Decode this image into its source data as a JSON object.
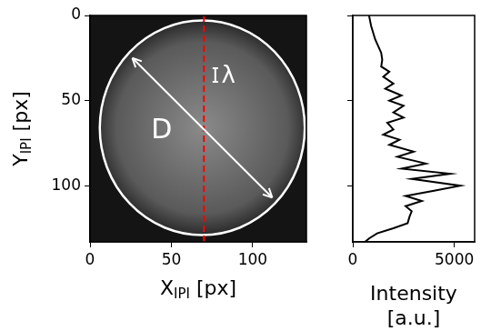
{
  "chart_data": [
    {
      "type": "image",
      "xlabel": [
        "X",
        "IPI",
        " [px]"
      ],
      "ylabel": [
        "Y",
        "IPI",
        " [px]"
      ],
      "xlim": [
        0,
        133
      ],
      "ylim": [
        133,
        0
      ],
      "xticks": [
        0,
        50,
        100
      ],
      "yticks": [
        0,
        50,
        100
      ],
      "annotations": [
        {
          "type": "circle",
          "center": [
            69,
            66
          ],
          "radius": 63,
          "color": "#ffffff"
        },
        {
          "type": "vline",
          "x": 70,
          "color": "#ff0000",
          "line_style": "dashed"
        },
        {
          "type": "arrow",
          "text": "D",
          "from": [
            26,
            25
          ],
          "to": [
            112,
            107
          ],
          "text_at": [
            44,
            68
          ],
          "color": "#ffffff"
        },
        {
          "type": "scalebar",
          "text": "λ",
          "x": 77,
          "y": [
            31,
            39
          ],
          "text_at": [
            85,
            36
          ],
          "color": "#ffffff"
        }
      ]
    },
    {
      "type": "line",
      "xlabel": [
        "Intensity",
        "[a.u.]"
      ],
      "xlim": [
        0,
        6000
      ],
      "ylim": [
        133,
        0
      ],
      "xticks": [
        0,
        5000
      ],
      "yticks": [
        0,
        50,
        100
      ],
      "tick_labels": "x",
      "series": [
        {
          "color": "#000000",
          "y": [
            0,
            3,
            6,
            10,
            14,
            18,
            22,
            26,
            30,
            33,
            36,
            40,
            43,
            47,
            50,
            53,
            57,
            60,
            63,
            67,
            70,
            73,
            76,
            80,
            83,
            87,
            90,
            93,
            96,
            100,
            103,
            106,
            109,
            112,
            115,
            118,
            122,
            125,
            128,
            131,
            133
          ],
          "x": [
            800,
            850,
            900,
            1000,
            1100,
            1250,
            1400,
            1450,
            1400,
            1800,
            1500,
            2000,
            1600,
            2400,
            1800,
            2500,
            2000,
            2500,
            1700,
            2000,
            1500,
            2300,
            1800,
            3000,
            2200,
            3600,
            2400,
            4800,
            2900,
            5300,
            4000,
            2600,
            3400,
            2600,
            2900,
            2800,
            2700,
            2000,
            1200,
            800,
            600
          ]
        }
      ]
    }
  ]
}
